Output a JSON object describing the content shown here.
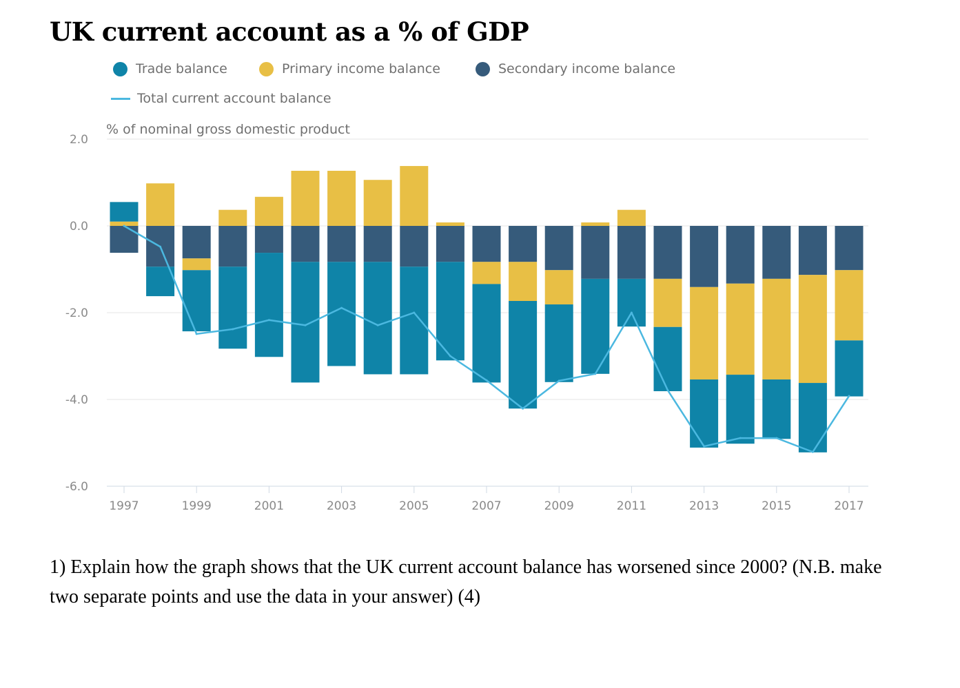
{
  "chart_data": {
    "type": "bar",
    "stacked": true,
    "title": "UK current account as a % of GDP",
    "ylabel": "% of nominal gross domestic product",
    "ylim": [
      -6.0,
      2.0
    ],
    "yticks": [
      "2.0",
      "0.0",
      "-2.0",
      "-4.0",
      "-6.0"
    ],
    "ytick_values": [
      2,
      0,
      -2,
      -4,
      -6
    ],
    "xticks": [
      "1997",
      "1999",
      "2001",
      "2003",
      "2005",
      "2007",
      "2009",
      "2011",
      "2013",
      "2015",
      "2017"
    ],
    "categories": [
      1997,
      1998,
      1999,
      2000,
      2001,
      2002,
      2003,
      2004,
      2005,
      2006,
      2007,
      2008,
      2009,
      2010,
      2011,
      2012,
      2013,
      2014,
      2015,
      2016,
      2017
    ],
    "grid": "horizontal",
    "legend_position": "top",
    "series": [
      {
        "name": "Trade balance",
        "kind": "bar",
        "color": "#0f84a8",
        "values": [
          0.45,
          -0.68,
          -1.41,
          -1.89,
          -2.4,
          -2.78,
          -2.4,
          -2.59,
          -2.48,
          -2.27,
          -2.27,
          -2.48,
          -1.79,
          -2.19,
          -1.1,
          -1.48,
          -1.57,
          -1.59,
          -1.37,
          -1.6,
          -1.29
        ]
      },
      {
        "name": "Primary income balance",
        "kind": "bar",
        "color": "#e8bf45",
        "values": [
          0.1,
          0.98,
          -0.27,
          0.37,
          0.67,
          1.27,
          1.27,
          1.06,
          1.38,
          0.08,
          -0.51,
          -0.9,
          -0.79,
          0.08,
          0.37,
          -1.11,
          -2.13,
          -2.1,
          -2.32,
          -2.49,
          -1.62
        ]
      },
      {
        "name": "Secondary income balance",
        "kind": "bar",
        "color": "#365b7b",
        "values": [
          -0.62,
          -0.94,
          -0.75,
          -0.94,
          -0.62,
          -0.83,
          -0.83,
          -0.83,
          -0.94,
          -0.83,
          -0.83,
          -0.83,
          -1.02,
          -1.22,
          -1.22,
          -1.22,
          -1.41,
          -1.33,
          -1.22,
          -1.13,
          -1.02
        ]
      },
      {
        "name": "Total current account balance",
        "kind": "line",
        "color": "#4bb8e0",
        "values": [
          0.0,
          -0.48,
          -2.49,
          -2.38,
          -2.17,
          -2.29,
          -1.89,
          -2.29,
          -2.0,
          -3.0,
          -3.56,
          -4.21,
          -3.57,
          -3.41,
          -2.0,
          -3.79,
          -5.08,
          -4.89,
          -4.89,
          -5.21,
          -3.92
        ]
      }
    ]
  },
  "question": "1) Explain how the graph shows that the UK current account balance has worsened since 2000? (N.B. make two separate points and use the data in your answer) (4)"
}
